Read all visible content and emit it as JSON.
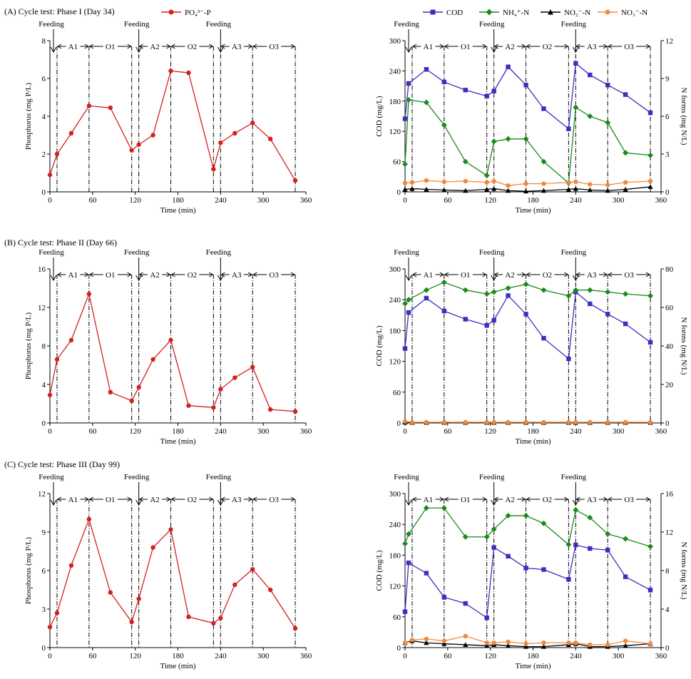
{
  "figure": {
    "panel_titles": [
      "(A) Cycle test: Phase I (Day 34)",
      "(B) Cycle test: Phase II (Day 66)",
      "(C) Cycle test: Phase III (Day 99)"
    ],
    "feeding_label": "Feeding",
    "phase_labels": [
      "A1",
      "O1",
      "A2",
      "O2",
      "A3",
      "O3"
    ]
  },
  "legend": {
    "phosphorus": "PO₄³⁻-P",
    "cod": "COD",
    "nh4": "NH₄⁺-N",
    "no2": "NO₂⁻-N",
    "no3": "NO₃⁻-N"
  },
  "colors": {
    "phosphorus": "#d42020",
    "cod": "#3a2fc0",
    "nh4": "#1a8a1a",
    "no2": "#000000",
    "no3": "#f08a3c"
  },
  "time_axis": {
    "label": "Time (min)",
    "ticks": [
      0,
      60,
      120,
      180,
      240,
      300,
      360
    ],
    "xlim": [
      0,
      360
    ],
    "feeding_times": [
      5,
      125,
      240
    ],
    "phase_boundaries": [
      10,
      55,
      115,
      125,
      170,
      230,
      240,
      285,
      345
    ]
  },
  "chart_data": [
    {
      "type": "line",
      "panel": "A-left",
      "xlabel": "Time (min)",
      "ylabel": "Phosphorus  (mg  P/L)",
      "ylim": [
        0,
        8
      ],
      "yticks": [
        0,
        2,
        4,
        6,
        8
      ],
      "series": [
        {
          "name": "PO₄³⁻-P",
          "x": [
            0,
            10,
            30,
            55,
            85,
            115,
            125,
            145,
            170,
            195,
            230,
            240,
            260,
            285,
            310,
            345
          ],
          "values": [
            0.9,
            2.0,
            3.1,
            4.55,
            4.45,
            2.2,
            2.5,
            3.0,
            6.4,
            6.3,
            1.2,
            2.6,
            3.1,
            3.65,
            2.8,
            0.6
          ]
        }
      ]
    },
    {
      "type": "line",
      "panel": "A-right",
      "xlabel": "Time (min)",
      "ylabel": "COD (mg/L)",
      "y2label": "N  forms  (mg  N/L)",
      "ylim": [
        0,
        300
      ],
      "yticks": [
        0,
        60,
        120,
        180,
        240,
        300
      ],
      "y2lim": [
        0,
        12
      ],
      "y2ticks": [
        0,
        3,
        6,
        9,
        12
      ],
      "series": [
        {
          "name": "COD",
          "axis": "left",
          "x": [
            0,
            5,
            30,
            55,
            85,
            115,
            125,
            145,
            170,
            195,
            230,
            240,
            260,
            285,
            310,
            345
          ],
          "values": [
            145,
            215,
            243,
            218,
            202,
            190,
            200,
            248,
            212,
            165,
            125,
            255,
            232,
            212,
            193,
            157
          ]
        },
        {
          "name": "NH₄⁺-N",
          "axis": "right",
          "x": [
            0,
            5,
            30,
            55,
            85,
            115,
            125,
            145,
            170,
            195,
            230,
            240,
            260,
            285,
            310,
            345
          ],
          "values": [
            2.2,
            7.3,
            7.1,
            5.3,
            2.4,
            1.3,
            4.0,
            4.2,
            4.2,
            2.4,
            0.7,
            6.7,
            6.0,
            5.5,
            3.1,
            2.9
          ]
        },
        {
          "name": "NO₂⁻-N",
          "axis": "right",
          "x": [
            0,
            10,
            30,
            55,
            85,
            115,
            125,
            145,
            170,
            195,
            230,
            240,
            260,
            285,
            310,
            345
          ],
          "values": [
            0.2,
            0.25,
            0.2,
            0.15,
            0.1,
            0.2,
            0.25,
            0.1,
            0.05,
            0.1,
            0.2,
            0.25,
            0.15,
            0.1,
            0.2,
            0.4
          ]
        },
        {
          "name": "NO₃⁻-N",
          "axis": "right",
          "x": [
            0,
            10,
            30,
            55,
            85,
            115,
            125,
            145,
            170,
            195,
            230,
            240,
            260,
            285,
            310,
            345
          ],
          "values": [
            0.7,
            0.75,
            0.9,
            0.8,
            0.85,
            0.75,
            0.85,
            0.5,
            0.65,
            0.65,
            0.75,
            0.8,
            0.6,
            0.55,
            0.75,
            0.85
          ]
        }
      ]
    },
    {
      "type": "line",
      "panel": "B-left",
      "xlabel": "Time (min)",
      "ylabel": "Phosphorus  (mg  P/L)",
      "ylim": [
        0,
        16
      ],
      "yticks": [
        0,
        4,
        8,
        12,
        16
      ],
      "series": [
        {
          "name": "PO₄³⁻-P",
          "x": [
            0,
            10,
            30,
            55,
            85,
            115,
            125,
            145,
            170,
            195,
            230,
            240,
            260,
            285,
            310,
            345
          ],
          "values": [
            2.9,
            6.6,
            8.6,
            13.4,
            3.2,
            2.3,
            3.7,
            6.6,
            8.6,
            1.8,
            1.6,
            3.5,
            4.7,
            5.8,
            1.4,
            1.2
          ]
        }
      ]
    },
    {
      "type": "line",
      "panel": "B-right",
      "xlabel": "Time (min)",
      "ylabel": "COD (mg/L)",
      "y2label": "N  forms  (mg  N/L)",
      "ylim": [
        0,
        300
      ],
      "yticks": [
        0,
        60,
        120,
        180,
        240,
        300
      ],
      "y2lim": [
        0,
        80
      ],
      "y2ticks": [
        0,
        20,
        40,
        60,
        80
      ],
      "series": [
        {
          "name": "COD",
          "axis": "left",
          "x": [
            0,
            5,
            30,
            55,
            85,
            115,
            125,
            145,
            170,
            195,
            230,
            240,
            260,
            285,
            310,
            345
          ],
          "values": [
            145,
            215,
            243,
            218,
            202,
            190,
            200,
            248,
            212,
            165,
            125,
            255,
            232,
            212,
            193,
            157
          ]
        },
        {
          "name": "NH₄⁺-N",
          "axis": "right",
          "x": [
            0,
            5,
            30,
            55,
            85,
            115,
            125,
            145,
            170,
            195,
            230,
            240,
            260,
            285,
            310,
            345
          ],
          "values": [
            62,
            64,
            69,
            73,
            69,
            67,
            68,
            70,
            72,
            69,
            66,
            69,
            69,
            68,
            67,
            66
          ]
        },
        {
          "name": "NO₂⁻-N",
          "axis": "right",
          "x": [
            0,
            10,
            30,
            55,
            85,
            115,
            125,
            145,
            170,
            195,
            230,
            240,
            260,
            285,
            310,
            345
          ],
          "values": [
            0.3,
            0.2,
            0.2,
            0.2,
            0.2,
            0.2,
            0.2,
            0.2,
            0.2,
            0.2,
            0.2,
            0.2,
            0.2,
            0.2,
            0.2,
            0.2
          ]
        },
        {
          "name": "NO₃⁻-N",
          "axis": "right",
          "x": [
            0,
            10,
            30,
            55,
            85,
            115,
            125,
            145,
            170,
            195,
            230,
            240,
            260,
            285,
            310,
            345
          ],
          "values": [
            0.8,
            0.4,
            0.4,
            0.4,
            0.4,
            0.4,
            0.4,
            0.4,
            0.4,
            0.4,
            0.4,
            0.4,
            0.4,
            0.4,
            0.4,
            0.4
          ]
        }
      ]
    },
    {
      "type": "line",
      "panel": "C-left",
      "xlabel": "Time (min)",
      "ylabel": "Phosphorus  (mg  P/L)",
      "ylim": [
        0,
        12
      ],
      "yticks": [
        0,
        3,
        6,
        9,
        12
      ],
      "series": [
        {
          "name": "PO₄³⁻-P",
          "x": [
            0,
            10,
            30,
            55,
            85,
            115,
            125,
            145,
            170,
            195,
            230,
            240,
            260,
            285,
            310,
            345
          ],
          "values": [
            1.6,
            2.7,
            6.4,
            10.0,
            4.3,
            2.0,
            3.8,
            7.8,
            9.2,
            2.4,
            1.9,
            2.3,
            4.9,
            6.1,
            4.5,
            1.5
          ]
        }
      ]
    },
    {
      "type": "line",
      "panel": "C-right",
      "xlabel": "Time (min)",
      "ylabel": "COD (mg/L)",
      "y2label": "N  forms  (mg  N/L)",
      "ylim": [
        0,
        300
      ],
      "yticks": [
        0,
        60,
        120,
        180,
        240,
        300
      ],
      "y2lim": [
        0,
        16
      ],
      "y2ticks": [
        0,
        4,
        8,
        12,
        16
      ],
      "series": [
        {
          "name": "COD",
          "axis": "left",
          "x": [
            0,
            5,
            30,
            55,
            85,
            115,
            125,
            145,
            170,
            195,
            230,
            240,
            260,
            285,
            310,
            345
          ],
          "values": [
            70,
            165,
            145,
            98,
            86,
            58,
            195,
            178,
            155,
            152,
            133,
            200,
            193,
            190,
            138,
            112
          ]
        },
        {
          "name": "NH₄⁺-N",
          "axis": "right",
          "x": [
            0,
            5,
            30,
            55,
            85,
            115,
            125,
            145,
            170,
            195,
            230,
            240,
            260,
            285,
            310,
            345
          ],
          "values": [
            10.8,
            11.8,
            14.5,
            14.5,
            11.5,
            11.5,
            12.3,
            13.7,
            13.7,
            12.9,
            10.7,
            14.3,
            13.5,
            11.8,
            11.3,
            10.5
          ]
        },
        {
          "name": "NO₂⁻-N",
          "axis": "right",
          "x": [
            0,
            10,
            30,
            55,
            85,
            115,
            125,
            145,
            170,
            195,
            230,
            240,
            260,
            285,
            310,
            345
          ],
          "values": [
            0.5,
            0.7,
            0.5,
            0.4,
            0.3,
            0.2,
            0.3,
            0.2,
            0.1,
            0.1,
            0.3,
            0.4,
            0.1,
            0.1,
            0.2,
            0.4
          ]
        },
        {
          "name": "NO₃⁻-N",
          "axis": "right",
          "x": [
            0,
            10,
            30,
            55,
            85,
            115,
            125,
            145,
            170,
            195,
            230,
            240,
            260,
            285,
            310,
            345
          ],
          "values": [
            0.5,
            0.8,
            0.9,
            0.7,
            1.2,
            0.5,
            0.5,
            0.6,
            0.4,
            0.5,
            0.5,
            0.5,
            0.3,
            0.3,
            0.7,
            0.4
          ]
        }
      ]
    }
  ]
}
